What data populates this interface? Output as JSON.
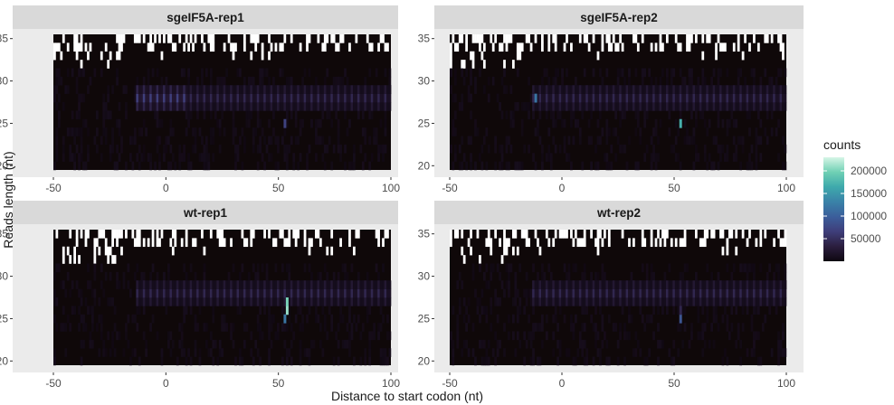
{
  "chart_data": {
    "type": "heatmap",
    "panels": [
      {
        "title": "sgeIF5A-rep1",
        "key": "sg1"
      },
      {
        "title": "sgeIF5A-rep2",
        "key": "sg2"
      },
      {
        "title": "wt-rep1",
        "key": "wt1"
      },
      {
        "title": "wt-rep2",
        "key": "wt2"
      }
    ],
    "xlabel": "Distance to start codon (nt)",
    "ylabel": "Reads length (nt)",
    "x_ticks": [
      "-50",
      "0",
      "50",
      "100"
    ],
    "y_ticks": [
      "20",
      "25",
      "30",
      "35"
    ],
    "x_tick_values": [
      -50,
      0,
      50,
      100
    ],
    "y_tick_values": [
      20,
      25,
      30,
      35
    ],
    "xlim": [
      -50,
      100
    ],
    "ylim": [
      20,
      35
    ],
    "legend": {
      "title": "counts",
      "labels": [
        "200000",
        "150000",
        "100000",
        "50000"
      ],
      "values": [
        200000,
        150000,
        100000,
        50000
      ],
      "min": 0,
      "max": 230000,
      "colors": [
        "#0e0710",
        "#2b1e3e",
        "#3f3e7a",
        "#3b5e9b",
        "#3a82a8",
        "#3ea9ac",
        "#6fd0b4",
        "#d6f5e6"
      ]
    },
    "background_color": "#0f0809",
    "missing_color": "#ffffff",
    "peaks": [
      {
        "panel": "sg2",
        "x": -12,
        "y": 28,
        "value": 120000
      },
      {
        "panel": "sg2",
        "x": 53,
        "y": 25,
        "value": 170000
      },
      {
        "panel": "sg1",
        "x": 53,
        "y": 25,
        "value": 70000
      },
      {
        "panel": "wt1",
        "x": 54,
        "y": 26,
        "value": 210000
      },
      {
        "panel": "wt1",
        "x": 54,
        "y": 27,
        "value": 200000
      },
      {
        "panel": "wt1",
        "x": 53,
        "y": 25,
        "value": 120000
      },
      {
        "panel": "wt2",
        "x": 53,
        "y": 25,
        "value": 90000
      },
      {
        "panel": "wt2",
        "x": 53,
        "y": 26,
        "value": 40000
      }
    ],
    "frame_band": {
      "x_start": -13,
      "x_end": 100,
      "y_values": [
        27,
        28,
        29
      ],
      "period": 3,
      "value": 30000
    }
  }
}
